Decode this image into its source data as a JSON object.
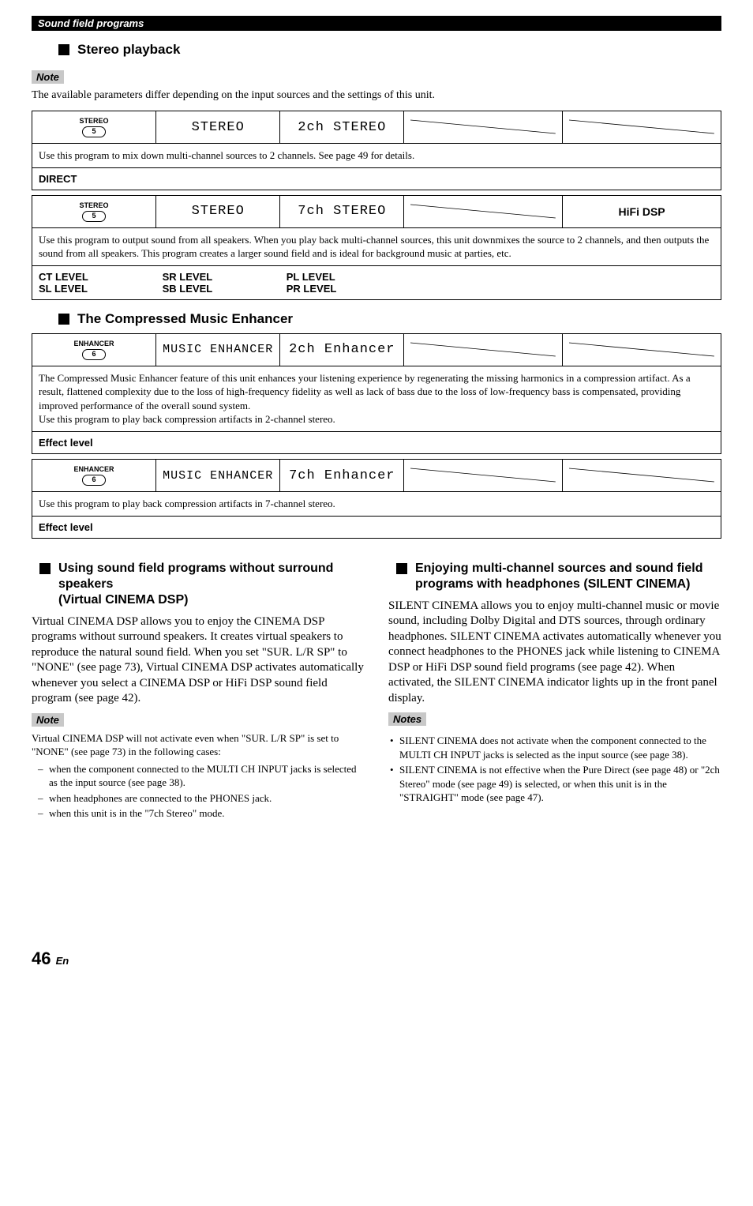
{
  "header": {
    "breadcrumb": "Sound field programs"
  },
  "stereo": {
    "section": "Stereo playback",
    "note_label": "Note",
    "note_text": "The available parameters differ depending on the input sources and the settings of this unit.",
    "row1": {
      "btn_label": "STEREO",
      "btn_num": "5",
      "col2": "STEREO",
      "col3": "2ch STEREO",
      "desc": "Use this program to mix down multi-channel sources to 2 channels. See page 49 for details.",
      "param_row": "DIRECT"
    },
    "row2": {
      "btn_label": "STEREO",
      "btn_num": "5",
      "col2": "STEREO",
      "col3": "7ch STEREO",
      "dsp": "HiFi DSP",
      "desc": "Use this program to output sound from all speakers. When you play back multi-channel sources, this unit downmixes the source to 2 channels, and then outputs the sound from all speakers. This program creates a larger sound field and is ideal for background music at parties, etc.",
      "params": {
        "c1a": "CT LEVEL",
        "c1b": "SL LEVEL",
        "c2a": "SR LEVEL",
        "c2b": "SB LEVEL",
        "c3a": "PL LEVEL",
        "c3b": "PR LEVEL"
      }
    }
  },
  "enhancer": {
    "section": "The Compressed Music Enhancer",
    "row1": {
      "btn_label": "ENHANCER",
      "btn_num": "6",
      "col2": "MUSIC ENHANCER",
      "col3": "2ch Enhancer",
      "desc": "The Compressed Music Enhancer feature of this unit enhances your listening experience by regenerating the missing harmonics in a compression artifact. As a result, flattened complexity due to the loss of high-frequency fidelity as well as lack of bass due to the loss of low-frequency bass is compensated, providing improved performance of the overall sound system.\nUse this program to play back compression artifacts in 2-channel stereo.",
      "param_row": "Effect level"
    },
    "row2": {
      "btn_label": "ENHANCER",
      "btn_num": "6",
      "col2": "MUSIC ENHANCER",
      "col3": "7ch Enhancer",
      "desc": "Use this program to play back compression artifacts in 7-channel stereo.",
      "param_row": "Effect level"
    }
  },
  "left_col": {
    "title": "Using sound field programs without surround speakers\n(Virtual CINEMA DSP)",
    "body": "Virtual CINEMA DSP allows you to enjoy the CINEMA DSP programs without surround speakers. It creates virtual speakers to reproduce the natural sound field. When you set \"SUR. L/R SP\" to \"NONE\" (see page 73), Virtual CINEMA DSP activates automatically whenever you select a CINEMA DSP or HiFi DSP sound field program (see page 42).",
    "note_label": "Note",
    "note_intro": "Virtual CINEMA DSP will not activate even when \"SUR. L/R SP\" is set to \"NONE\" (see page 73) in the following cases:",
    "bullets": [
      "when the component connected to the MULTI CH INPUT jacks is selected as the input source (see page 38).",
      "when headphones are connected to the PHONES jack.",
      "when this unit is in the \"7ch Stereo\" mode."
    ]
  },
  "right_col": {
    "title": "Enjoying multi-channel sources and sound field programs with headphones (SILENT CINEMA)",
    "body": "SILENT CINEMA allows you to enjoy multi-channel music or movie sound, including Dolby Digital and DTS sources, through ordinary headphones. SILENT CINEMA activates automatically whenever you connect headphones to the PHONES jack while listening to CINEMA DSP or HiFi DSP sound field programs (see page 42). When activated, the SILENT CINEMA indicator lights up in the front panel display.",
    "notes_label": "Notes",
    "bullets": [
      "SILENT CINEMA does not activate when the component connected to the MULTI CH INPUT jacks is selected as the input source (see page 38).",
      "SILENT CINEMA is not effective when the Pure Direct (see page 48) or \"2ch Stereo\" mode (see page 49) is selected, or when this unit is in the \"STRAIGHT\" mode (see page 47)."
    ]
  },
  "page": {
    "num": "46",
    "lang": "En"
  },
  "slope": {
    "stroke": "#000000",
    "width": "1"
  }
}
